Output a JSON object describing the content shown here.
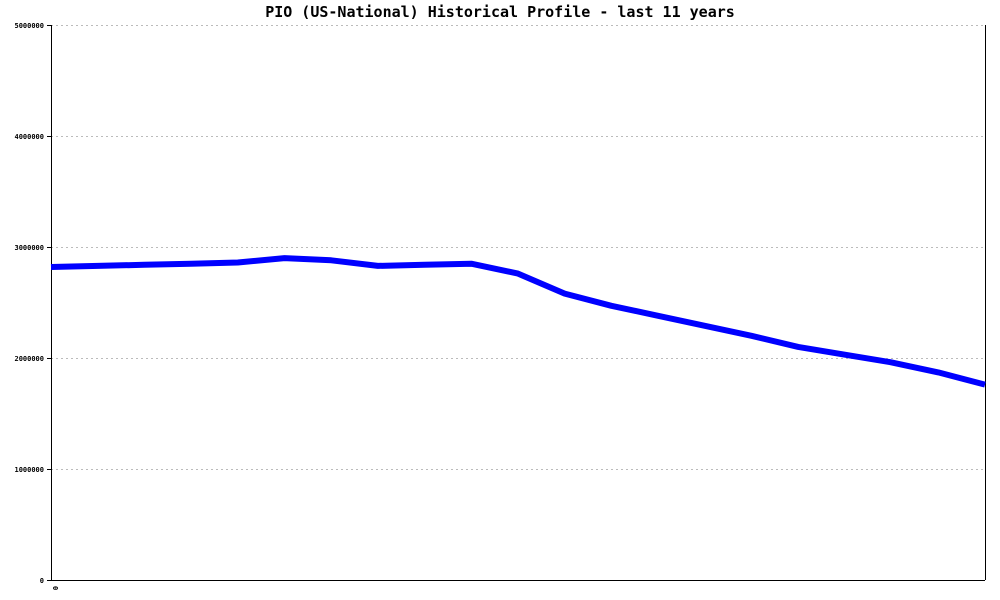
{
  "chart_data": {
    "type": "line",
    "title": "PIO (US-National) Historical Profile - last 11 years",
    "xlabel": "",
    "ylabel": "",
    "ylim": [
      0,
      5000000
    ],
    "y_ticks": [
      "0",
      "1000000",
      "2000000",
      "3000000",
      "4000000",
      "5000000"
    ],
    "x_ticks": [
      "0"
    ],
    "grid": true,
    "series": [
      {
        "color": "#0000ff",
        "x": [
          0,
          0.5,
          1,
          1.5,
          2,
          2.5,
          3,
          3.5,
          4,
          4.5,
          5,
          5.5,
          6,
          6.5,
          7,
          7.5,
          8,
          8.5,
          9,
          9.5,
          10
        ],
        "values": [
          2820000,
          2830000,
          2840000,
          2850000,
          2860000,
          2900000,
          2880000,
          2830000,
          2840000,
          2850000,
          2760000,
          2580000,
          2470000,
          2380000,
          2290000,
          2200000,
          2100000,
          2030000,
          1960000,
          1870000,
          1760000
        ]
      }
    ]
  }
}
